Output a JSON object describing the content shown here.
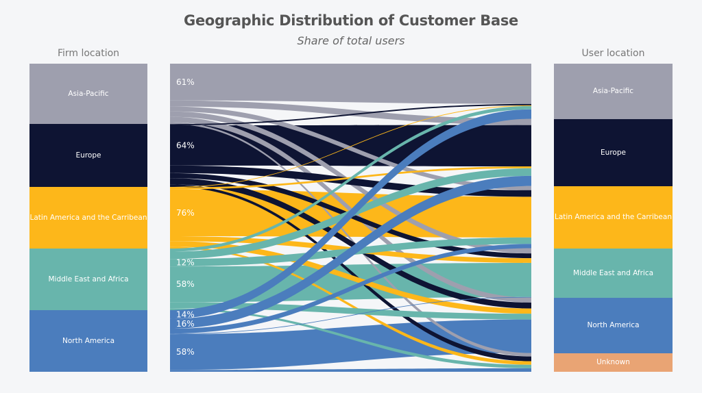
{
  "chart_data": {
    "type": "sankey",
    "title": "Geographic Distribution of Customer Base",
    "subtitle": "Share of total users",
    "left_header": "Firm location",
    "right_header": "User location",
    "regions": [
      {
        "key": "ap",
        "label": "Asia-Pacific",
        "color": "#9e9fae",
        "firm_share": 0.196,
        "user_share": 0.179
      },
      {
        "key": "eu",
        "label": "Europe",
        "color": "#0e1433",
        "firm_share": 0.204,
        "user_share": 0.218
      },
      {
        "key": "la",
        "label": "Latin America and the Carribean",
        "color": "#fdb71a",
        "firm_share": 0.2,
        "user_share": 0.202
      },
      {
        "key": "me",
        "label": "Middle East and Africa",
        "color": "#68b5ac",
        "firm_share": 0.2,
        "user_share": 0.16
      },
      {
        "key": "na",
        "label": "North America",
        "color": "#4b7dbd",
        "firm_share": 0.2,
        "user_share": 0.18
      },
      {
        "key": "un",
        "label": "Unknown",
        "color": "#e9a474",
        "firm_share": 0.0,
        "user_share": 0.061
      }
    ],
    "flows": {
      "ap": {
        "ap": 0.61,
        "eu": 0.1,
        "la": 0.08,
        "me": 0.09,
        "na": 0.09,
        "un": 0.03
      },
      "eu": {
        "ap": 0.02,
        "eu": 0.64,
        "la": 0.12,
        "me": 0.08,
        "na": 0.1,
        "un": 0.04
      },
      "la": {
        "ap": 0.01,
        "eu": 0.03,
        "la": 0.76,
        "me": 0.08,
        "na": 0.09,
        "un": 0.03
      },
      "me": {
        "ap": 0.05,
        "eu": 0.12,
        "la": 0.12,
        "me": 0.58,
        "na": 0.1,
        "un": 0.03
      },
      "na": {
        "ap": 0.14,
        "eu": 0.16,
        "la": 0.08,
        "me": 0.01,
        "na": 0.58,
        "un": 0.03
      }
    },
    "flow_labels": [
      {
        "text": "61%",
        "source": "ap",
        "target": "ap"
      },
      {
        "text": "64%",
        "source": "eu",
        "target": "eu"
      },
      {
        "text": "76%",
        "source": "la",
        "target": "la"
      },
      {
        "text": "58%",
        "source": "me",
        "target": "me"
      },
      {
        "text": "12%",
        "source": "me",
        "target": "la"
      },
      {
        "text": "14%",
        "source": "na",
        "target": "ap"
      },
      {
        "text": "16%",
        "source": "na",
        "target": "eu"
      },
      {
        "text": "58%",
        "source": "na",
        "target": "na"
      }
    ]
  }
}
